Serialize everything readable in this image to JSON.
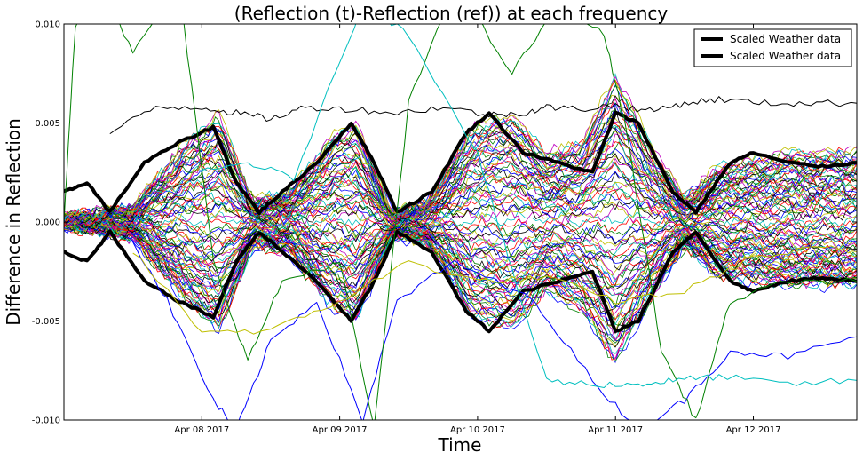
{
  "chart_data": {
    "type": "line",
    "title": "(Reflection (t)-Reflection (ref)) at each frequency",
    "xlabel": "Time",
    "ylabel": "Difference in Reflection",
    "xlim": [
      "2017-04-07 00:00",
      "2017-04-12 18:00"
    ],
    "ylim": [
      -0.01,
      0.01
    ],
    "x_ticks": [
      {
        "label": "Apr 08 2017",
        "value": "2017-04-08 00:00"
      },
      {
        "label": "Apr 09 2017",
        "value": "2017-04-09 00:00"
      },
      {
        "label": "Apr 10 2017",
        "value": "2017-04-10 00:00"
      },
      {
        "label": "Apr 11 2017",
        "value": "2017-04-11 00:00"
      },
      {
        "label": "Apr 12 2017",
        "value": "2017-04-12 00:00"
      }
    ],
    "y_ticks": [
      {
        "label": "0.010",
        "value": 0.01
      },
      {
        "label": "0.005",
        "value": 0.005
      },
      {
        "label": "0.000",
        "value": 0.0
      },
      {
        "label": "-0.005",
        "value": -0.005
      },
      {
        "label": "-0.010",
        "value": -0.01
      }
    ],
    "legend": {
      "placement": "top-right",
      "entries": [
        {
          "name": "Scaled Weather data",
          "color": "#000000"
        },
        {
          "name": "Scaled Weather data",
          "color": "#000000"
        }
      ]
    },
    "envelope": {
      "description_free": true,
      "points": [
        {
          "x": "2017-04-07 00:00",
          "upper": 0.0002,
          "lower": -0.0002
        },
        {
          "x": "2017-04-07 12:00",
          "upper": 0.0008,
          "lower": -0.0008
        },
        {
          "x": "2017-04-07 21:00",
          "upper": 0.004,
          "lower": -0.004
        },
        {
          "x": "2017-04-08 03:00",
          "upper": 0.0055,
          "lower": -0.0055
        },
        {
          "x": "2017-04-08 09:00",
          "upper": 0.001,
          "lower": -0.0012
        },
        {
          "x": "2017-04-08 15:00",
          "upper": 0.0015,
          "lower": -0.0015
        },
        {
          "x": "2017-04-08 23:00",
          "upper": 0.0045,
          "lower": -0.0045
        },
        {
          "x": "2017-04-09 03:00",
          "upper": 0.005,
          "lower": -0.005
        },
        {
          "x": "2017-04-09 09:00",
          "upper": 0.0005,
          "lower": -0.0008
        },
        {
          "x": "2017-04-09 15:00",
          "upper": 0.001,
          "lower": -0.001
        },
        {
          "x": "2017-04-09 23:00",
          "upper": 0.0048,
          "lower": -0.0048
        },
        {
          "x": "2017-04-10 06:00",
          "upper": 0.0055,
          "lower": -0.0055
        },
        {
          "x": "2017-04-10 12:00",
          "upper": 0.0035,
          "lower": -0.0035
        },
        {
          "x": "2017-04-10 18:00",
          "upper": 0.004,
          "lower": -0.0045
        },
        {
          "x": "2017-04-11 00:00",
          "upper": 0.0075,
          "lower": -0.0072
        },
        {
          "x": "2017-04-11 06:00",
          "upper": 0.004,
          "lower": -0.004
        },
        {
          "x": "2017-04-11 12:00",
          "upper": 0.0012,
          "lower": -0.0012
        },
        {
          "x": "2017-04-11 18:00",
          "upper": 0.0028,
          "lower": -0.0028
        },
        {
          "x": "2017-04-12 06:00",
          "upper": 0.0035,
          "lower": -0.0032
        },
        {
          "x": "2017-04-12 18:00",
          "upper": 0.0036,
          "lower": -0.0032
        }
      ],
      "colors": [
        "#0000ff",
        "#008000",
        "#ff0000",
        "#00bfbf",
        "#bf00bf",
        "#bfbf00",
        "#000000"
      ]
    },
    "series": [
      {
        "color": "#000000",
        "width": 4,
        "points": [
          [
            "2017-04-07 00:00",
            0.0015
          ],
          [
            "2017-04-07 04:00",
            0.002
          ],
          [
            "2017-04-07 08:00",
            0.0005
          ],
          [
            "2017-04-07 14:00",
            0.003
          ],
          [
            "2017-04-07 20:00",
            0.004
          ],
          [
            "2017-04-08 02:00",
            0.0048
          ],
          [
            "2017-04-08 06:00",
            0.002
          ],
          [
            "2017-04-08 10:00",
            0.0005
          ],
          [
            "2017-04-08 14:00",
            0.0015
          ],
          [
            "2017-04-08 20:00",
            0.003
          ],
          [
            "2017-04-09 02:00",
            0.005
          ],
          [
            "2017-04-09 06:00",
            0.003
          ],
          [
            "2017-04-09 10:00",
            0.0005
          ],
          [
            "2017-04-09 16:00",
            0.0015
          ],
          [
            "2017-04-09 22:00",
            0.0045
          ],
          [
            "2017-04-10 02:00",
            0.0055
          ],
          [
            "2017-04-10 08:00",
            0.0035
          ],
          [
            "2017-04-10 14:00",
            0.003
          ],
          [
            "2017-04-10 20:00",
            0.0025
          ],
          [
            "2017-04-11 00:00",
            0.0055
          ],
          [
            "2017-04-11 04:00",
            0.005
          ],
          [
            "2017-04-11 10:00",
            0.0015
          ],
          [
            "2017-04-11 14:00",
            0.0005
          ],
          [
            "2017-04-11 20:00",
            0.003
          ],
          [
            "2017-04-12 00:00",
            0.0035
          ],
          [
            "2017-04-12 06:00",
            0.003
          ],
          [
            "2017-04-12 12:00",
            0.0028
          ],
          [
            "2017-04-12 18:00",
            0.003
          ]
        ]
      },
      {
        "color": "#000000",
        "width": 4,
        "points": [
          [
            "2017-04-07 00:00",
            -0.0015
          ],
          [
            "2017-04-07 04:00",
            -0.002
          ],
          [
            "2017-04-07 08:00",
            -0.0005
          ],
          [
            "2017-04-07 14:00",
            -0.003
          ],
          [
            "2017-04-07 20:00",
            -0.004
          ],
          [
            "2017-04-08 02:00",
            -0.0048
          ],
          [
            "2017-04-08 06:00",
            -0.002
          ],
          [
            "2017-04-08 10:00",
            -0.0005
          ],
          [
            "2017-04-08 14:00",
            -0.0015
          ],
          [
            "2017-04-08 20:00",
            -0.003
          ],
          [
            "2017-04-09 02:00",
            -0.005
          ],
          [
            "2017-04-09 06:00",
            -0.003
          ],
          [
            "2017-04-09 10:00",
            -0.0005
          ],
          [
            "2017-04-09 16:00",
            -0.0015
          ],
          [
            "2017-04-09 22:00",
            -0.0045
          ],
          [
            "2017-04-10 02:00",
            -0.0055
          ],
          [
            "2017-04-10 08:00",
            -0.0035
          ],
          [
            "2017-04-10 14:00",
            -0.003
          ],
          [
            "2017-04-10 20:00",
            -0.0025
          ],
          [
            "2017-04-11 00:00",
            -0.0055
          ],
          [
            "2017-04-11 04:00",
            -0.005
          ],
          [
            "2017-04-11 10:00",
            -0.0015
          ],
          [
            "2017-04-11 14:00",
            -0.0005
          ],
          [
            "2017-04-11 20:00",
            -0.003
          ],
          [
            "2017-04-12 00:00",
            -0.0035
          ],
          [
            "2017-04-12 06:00",
            -0.003
          ],
          [
            "2017-04-12 12:00",
            -0.0028
          ],
          [
            "2017-04-12 18:00",
            -0.003
          ]
        ]
      },
      {
        "color": "#000000",
        "width": 1,
        "points": [
          [
            "2017-04-07 08:00",
            0.0045
          ],
          [
            "2017-04-07 16:00",
            0.0058
          ],
          [
            "2017-04-08 00:00",
            0.0058
          ],
          [
            "2017-04-08 06:00",
            0.0055
          ],
          [
            "2017-04-08 12:00",
            0.0052
          ],
          [
            "2017-04-08 18:00",
            0.0058
          ],
          [
            "2017-04-09 02:00",
            0.0057
          ],
          [
            "2017-04-09 10:00",
            0.0055
          ],
          [
            "2017-04-09 18:00",
            0.0058
          ],
          [
            "2017-04-10 02:00",
            0.0054
          ],
          [
            "2017-04-10 08:00",
            0.0055
          ],
          [
            "2017-04-10 12:00",
            0.0058
          ],
          [
            "2017-04-10 18:00",
            0.0057
          ],
          [
            "2017-04-11 00:00",
            0.0059
          ],
          [
            "2017-04-11 06:00",
            0.0056
          ],
          [
            "2017-04-11 12:00",
            0.006
          ],
          [
            "2017-04-11 18:00",
            0.0062
          ],
          [
            "2017-04-12 02:00",
            0.006
          ],
          [
            "2017-04-12 10:00",
            0.006
          ],
          [
            "2017-04-12 18:00",
            0.006
          ]
        ]
      },
      {
        "color": "#0000ff",
        "width": 1,
        "points": [
          [
            "2017-04-07 12:00",
            -0.001
          ],
          [
            "2017-04-07 18:00",
            -0.004
          ],
          [
            "2017-04-08 02:00",
            -0.009
          ],
          [
            "2017-04-08 06:00",
            -0.0105
          ],
          [
            "2017-04-08 12:00",
            -0.006
          ],
          [
            "2017-04-08 20:00",
            -0.004
          ],
          [
            "2017-04-09 04:00",
            -0.01
          ],
          [
            "2017-04-09 10:00",
            -0.004
          ],
          [
            "2017-04-09 20:00",
            -0.002
          ],
          [
            "2017-04-10 10:00",
            -0.004
          ],
          [
            "2017-04-10 20:00",
            -0.008
          ],
          [
            "2017-04-11 04:00",
            -0.0105
          ],
          [
            "2017-04-11 12:00",
            -0.009
          ],
          [
            "2017-04-11 20:00",
            -0.0065
          ],
          [
            "2017-04-12 06:00",
            -0.0068
          ],
          [
            "2017-04-12 18:00",
            -0.0058
          ]
        ]
      },
      {
        "color": "#008000",
        "width": 1,
        "points": [
          [
            "2017-04-07 00:00",
            0.0
          ],
          [
            "2017-04-07 02:00",
            0.01
          ],
          [
            "2017-04-07 06:00",
            0.0125
          ],
          [
            "2017-04-07 12:00",
            0.0085
          ],
          [
            "2017-04-07 20:00",
            0.012
          ],
          [
            "2017-04-08 02:00",
            -0.002
          ],
          [
            "2017-04-08 08:00",
            -0.007
          ],
          [
            "2017-04-08 14:00",
            -0.003
          ],
          [
            "2017-04-09 00:00",
            -0.002
          ],
          [
            "2017-04-09 06:00",
            -0.0105
          ],
          [
            "2017-04-09 12:00",
            0.006
          ],
          [
            "2017-04-09 20:00",
            0.012
          ],
          [
            "2017-04-10 06:00",
            0.0075
          ],
          [
            "2017-04-10 14:00",
            0.011
          ],
          [
            "2017-04-10 22:00",
            0.0095
          ],
          [
            "2017-04-11 02:00",
            0.0045
          ],
          [
            "2017-04-11 08:00",
            -0.0065
          ],
          [
            "2017-04-11 14:00",
            -0.01
          ],
          [
            "2017-04-11 20:00",
            -0.004
          ],
          [
            "2017-04-12 06:00",
            -0.003
          ],
          [
            "2017-04-12 18:00",
            -0.003
          ]
        ]
      },
      {
        "color": "#00bfbf",
        "width": 1,
        "points": [
          [
            "2017-04-08 00:00",
            0.0025
          ],
          [
            "2017-04-08 08:00",
            0.003
          ],
          [
            "2017-04-08 16:00",
            0.0022
          ],
          [
            "2017-04-09 04:00",
            0.011
          ],
          [
            "2017-04-09 12:00",
            0.0095
          ],
          [
            "2017-04-10 00:00",
            0.0035
          ],
          [
            "2017-04-10 06:00",
            -0.0025
          ],
          [
            "2017-04-10 12:00",
            -0.008
          ],
          [
            "2017-04-10 20:00",
            -0.0082
          ],
          [
            "2017-04-11 04:00",
            -0.0082
          ],
          [
            "2017-04-11 10:00",
            -0.008
          ],
          [
            "2017-04-11 18:00",
            -0.0078
          ],
          [
            "2017-04-12 06:00",
            -0.0082
          ],
          [
            "2017-04-12 18:00",
            -0.008
          ]
        ]
      },
      {
        "color": "#bfbf00",
        "width": 1,
        "points": [
          [
            "2017-04-07 12:00",
            -0.0015
          ],
          [
            "2017-04-08 00:00",
            -0.0055
          ],
          [
            "2017-04-08 12:00",
            -0.0055
          ],
          [
            "2017-04-09 00:00",
            -0.004
          ],
          [
            "2017-04-09 12:00",
            -0.002
          ],
          [
            "2017-04-10 00:00",
            -0.003
          ],
          [
            "2017-04-10 12:00",
            -0.0028
          ],
          [
            "2017-04-11 00:00",
            -0.004
          ],
          [
            "2017-04-11 12:00",
            -0.0035
          ],
          [
            "2017-04-12 00:00",
            -0.0018
          ],
          [
            "2017-04-12 12:00",
            -0.0013
          ],
          [
            "2017-04-12 18:00",
            -0.0015
          ]
        ]
      }
    ]
  }
}
